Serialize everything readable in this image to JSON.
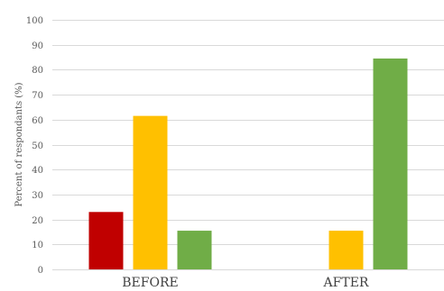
{
  "chart_data": {
    "type": "bar",
    "title": "",
    "xlabel": "",
    "ylabel": "Percent of respondants (%)",
    "ylim": [
      0,
      100
    ],
    "yticks": [
      0,
      10,
      20,
      30,
      40,
      50,
      60,
      70,
      80,
      90,
      100
    ],
    "grid": true,
    "legend": "none",
    "categories": [
      "BEFORE",
      "AFTER"
    ],
    "series": [
      {
        "color": "#c00000",
        "values": [
          23,
          0
        ]
      },
      {
        "color": "#ffc000",
        "values": [
          61.5,
          15.5
        ]
      },
      {
        "color": "#70ad47",
        "values": [
          15.5,
          84.5
        ]
      }
    ]
  }
}
